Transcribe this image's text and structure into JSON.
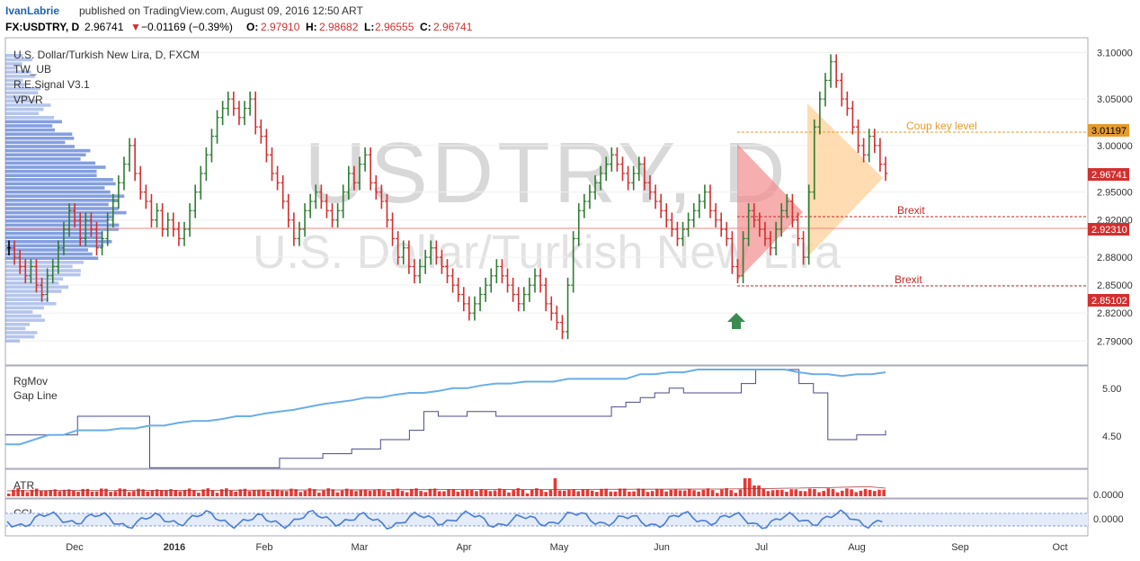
{
  "header": {
    "author": "IvanLabrie",
    "published_text": "published on TradingView.com, August 09, 2016 12:50 ART",
    "symbol": "FX:USDTRY, D",
    "last": "2.96741",
    "change": "−0.01169 (−0.39%)",
    "o_label": "O:",
    "o_value": "2.97910",
    "h_label": "H:",
    "h_value": "2.98682",
    "l_label": "L:",
    "l_value": "2.96555",
    "c_label": "C:",
    "c_value": "2.96741"
  },
  "legend": {
    "title": "U.S. Dollar/Turkish New Lira, D, FXCM",
    "ind1": "TW_UB",
    "ind2": "R.E.Signal V3.1",
    "ind3": "VPVR"
  },
  "watermark": {
    "big": "USDTRY, D",
    "small": "U.S. Dollar/Turkish New Lira"
  },
  "annotations": {
    "coup": "Coup key level",
    "brexit1": "Brexit",
    "brexit2": "Brexit"
  },
  "price_labels": {
    "coup": "3.01197",
    "last": "2.96741",
    "brexit": "2.92310",
    "low": "2.85102"
  },
  "panes": {
    "rgmov_title": "RgMov",
    "gapline_title": "Gap Line",
    "atr_title": "ATR",
    "cci_title": "CCI",
    "atr_value": "0.0000",
    "cci_value": "0.0000"
  },
  "colors": {
    "up": "#2e7d32",
    "down": "#d32f2f",
    "neutral": "#000000",
    "vpvr": "#5b7fd6",
    "orange": "#e69b2e",
    "brexit": "#c62828",
    "rgmov": "#6aaee8",
    "gapline": "#4a4a8a"
  },
  "chart_data": {
    "type": "candlestick",
    "symbol": "FX:USDTRY",
    "interval": "D",
    "y_axis_ticks": [
      3.1,
      3.05,
      3.0,
      2.95,
      2.92,
      2.88,
      2.85,
      2.82,
      2.79
    ],
    "x_axis_ticks": [
      "Dec",
      "2016",
      "Feb",
      "Mar",
      "Apr",
      "May",
      "Jun",
      "Jul",
      "Aug",
      "Sep",
      "Oct"
    ],
    "levels": [
      {
        "label": "Coup key level",
        "value": 3.01197
      },
      {
        "label": "Brexit",
        "value": 2.9231
      },
      {
        "label": "Brexit",
        "value": 2.85102
      }
    ],
    "close_series": [
      2.89,
      2.88,
      2.87,
      2.86,
      2.87,
      2.85,
      2.84,
      2.86,
      2.87,
      2.89,
      2.91,
      2.93,
      2.92,
      2.9,
      2.92,
      2.91,
      2.89,
      2.9,
      2.92,
      2.94,
      2.96,
      2.98,
      3.0,
      2.97,
      2.95,
      2.94,
      2.92,
      2.93,
      2.91,
      2.92,
      2.91,
      2.9,
      2.91,
      2.93,
      2.95,
      2.97,
      2.99,
      3.01,
      3.03,
      3.04,
      3.05,
      3.04,
      3.03,
      3.04,
      3.05,
      3.02,
      3.01,
      2.99,
      2.97,
      2.96,
      2.94,
      2.92,
      2.9,
      2.91,
      2.93,
      2.94,
      2.95,
      2.94,
      2.93,
      2.92,
      2.93,
      2.95,
      2.97,
      2.96,
      2.98,
      2.99,
      2.96,
      2.95,
      2.94,
      2.92,
      2.9,
      2.88,
      2.89,
      2.87,
      2.86,
      2.87,
      2.88,
      2.89,
      2.88,
      2.87,
      2.86,
      2.85,
      2.84,
      2.83,
      2.82,
      2.83,
      2.84,
      2.85,
      2.86,
      2.87,
      2.86,
      2.85,
      2.84,
      2.83,
      2.84,
      2.85,
      2.86,
      2.85,
      2.83,
      2.82,
      2.81,
      2.8,
      2.85,
      2.9,
      2.93,
      2.94,
      2.95,
      2.96,
      2.97,
      2.98,
      2.99,
      2.98,
      2.97,
      2.96,
      2.97,
      2.98,
      2.96,
      2.95,
      2.94,
      2.93,
      2.92,
      2.91,
      2.9,
      2.91,
      2.92,
      2.93,
      2.94,
      2.95,
      2.93,
      2.92,
      2.91,
      2.9,
      2.87,
      2.86,
      2.9,
      2.93,
      2.92,
      2.91,
      2.9,
      2.89,
      2.91,
      2.93,
      2.94,
      2.92,
      2.9,
      2.88,
      2.95,
      3.02,
      3.05,
      3.07,
      3.09,
      3.07,
      3.05,
      3.04,
      3.02,
      3.0,
      2.99,
      3.01,
      3.0,
      2.98,
      2.97
    ],
    "gap_line": [
      4.55,
      4.55,
      4.55,
      4.55,
      4.55,
      4.75,
      4.75,
      4.75,
      4.75,
      4.75,
      4.2,
      4.2,
      4.2,
      4.2,
      4.2,
      4.2,
      4.2,
      4.2,
      4.2,
      4.3,
      4.3,
      4.3,
      4.35,
      4.35,
      4.4,
      4.4,
      4.5,
      4.5,
      4.6,
      4.8,
      4.75,
      4.75,
      4.8,
      4.8,
      4.75,
      4.75,
      4.75,
      4.75,
      4.75,
      4.75,
      4.75,
      4.75,
      4.85,
      4.9,
      4.95,
      5.0,
      5.05,
      5.0,
      5.0,
      5.0,
      5.0,
      5.1,
      5.25,
      5.25,
      5.25,
      5.1,
      5.0,
      4.5,
      4.5,
      4.55,
      4.55,
      4.6
    ],
    "rgmov": [
      4.45,
      4.45,
      4.5,
      4.55,
      4.55,
      4.6,
      4.6,
      4.6,
      4.62,
      4.62,
      4.65,
      4.65,
      4.68,
      4.7,
      4.7,
      4.72,
      4.75,
      4.75,
      4.78,
      4.8,
      4.82,
      4.85,
      4.88,
      4.9,
      4.92,
      4.95,
      4.95,
      4.98,
      5.0,
      5.0,
      5.02,
      5.05,
      5.05,
      5.08,
      5.1,
      5.1,
      5.12,
      5.12,
      5.12,
      5.15,
      5.15,
      5.15,
      5.15,
      5.15,
      5.2,
      5.2,
      5.22,
      5.22,
      5.25,
      5.25,
      5.25,
      5.25,
      5.25,
      5.25,
      5.25,
      5.22,
      5.2,
      5.2,
      5.18,
      5.2,
      5.2,
      5.22
    ],
    "atr_panel_value": 0.0,
    "cci_panel_value": 0.0
  }
}
